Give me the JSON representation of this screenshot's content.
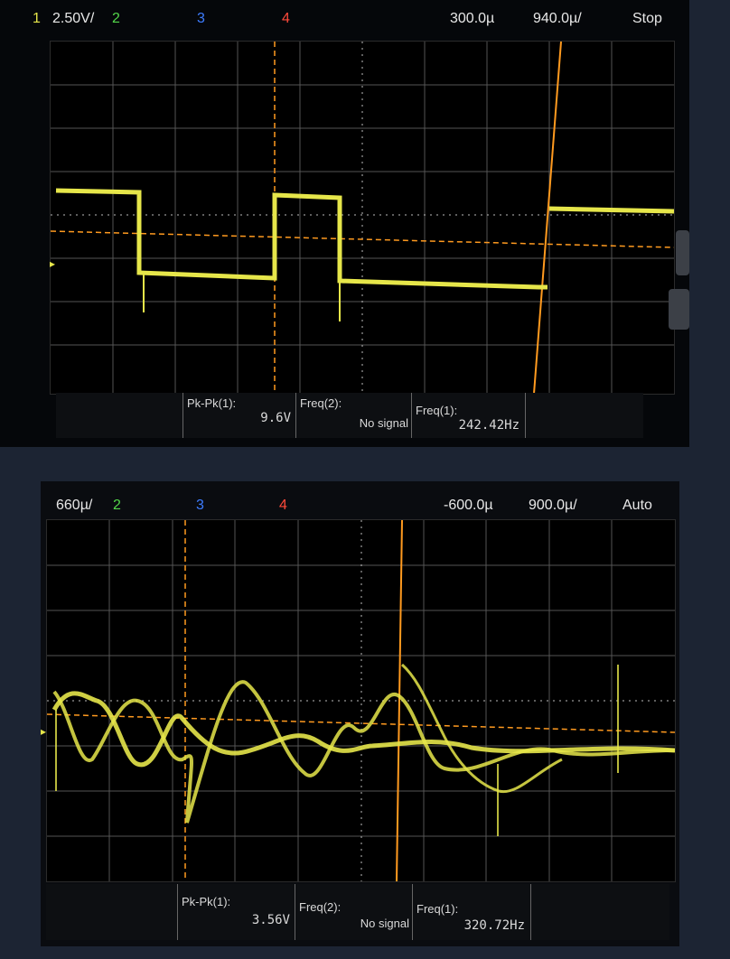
{
  "scope1": {
    "header": {
      "ch1_num": "1",
      "ch1_scale": "2.50V/",
      "ch2_num": "2",
      "ch3_num": "3",
      "ch4_num": "4",
      "delay": "300.0µ",
      "timebase": "940.0µ/",
      "status": "Stop"
    },
    "measurements": [
      {
        "label": "Pk-Pk(1):",
        "value": "9.6V"
      },
      {
        "label": "Freq(2):",
        "value": "No signal"
      },
      {
        "label": "Freq(1):",
        "value": "242.42Hz"
      }
    ],
    "colors": {
      "trace": "#e6e64a",
      "cursor": "#ff9a1f",
      "grid": "#8a8a8a"
    }
  },
  "scope2": {
    "header": {
      "ch1_scale": "660µ/",
      "ch2_num": "2",
      "ch3_num": "3",
      "ch4_num": "4",
      "delay": "-600.0µ",
      "timebase": "900.0µ/",
      "status": "Auto"
    },
    "measurements": [
      {
        "label": "Pk-Pk(1):",
        "value": "3.56V"
      },
      {
        "label": "Freq(2):",
        "value": "No signal"
      },
      {
        "label": "Freq(1):",
        "value": "320.72Hz"
      }
    ],
    "colors": {
      "trace": "#e6e64a",
      "cursor": "#ff9a1f",
      "grid": "#8a8a8a"
    }
  }
}
